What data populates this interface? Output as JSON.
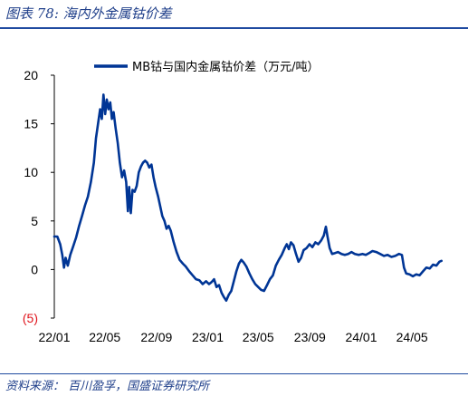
{
  "figure_title": "图表 78:  海内外金属钴价差",
  "source": "资料来源：  百川盈孚，国盛证券研究所",
  "chart_data": {
    "type": "line",
    "title": "",
    "xlabel": "",
    "ylabel": "",
    "legend_position": "top",
    "grid": false,
    "ylim": [
      -5,
      20
    ],
    "yticks": [
      {
        "value": 20,
        "label": "20"
      },
      {
        "value": 15,
        "label": "15"
      },
      {
        "value": 10,
        "label": "10"
      },
      {
        "value": 5,
        "label": "5"
      },
      {
        "value": 0,
        "label": "0"
      },
      {
        "value": -5,
        "label": "(5)"
      }
    ],
    "xlim": [
      "2022-01-01",
      "2024-07-15"
    ],
    "xticks": [
      {
        "date": "2022-01-01",
        "label": "22/01"
      },
      {
        "date": "2022-05-01",
        "label": "22/05"
      },
      {
        "date": "2022-09-01",
        "label": "22/09"
      },
      {
        "date": "2023-01-01",
        "label": "23/01"
      },
      {
        "date": "2023-05-01",
        "label": "23/05"
      },
      {
        "date": "2023-09-01",
        "label": "23/09"
      },
      {
        "date": "2024-01-01",
        "label": "24/01"
      },
      {
        "date": "2024-05-01",
        "label": "24/05"
      }
    ],
    "series": [
      {
        "name": "MB钴与国内金属钴价差（万元/吨）",
        "color": "#003595",
        "points": [
          [
            "2022-01-01",
            3.4
          ],
          [
            "2022-01-08",
            3.4
          ],
          [
            "2022-01-15",
            2.6
          ],
          [
            "2022-01-20",
            1.5
          ],
          [
            "2022-01-24",
            0.2
          ],
          [
            "2022-01-28",
            1.2
          ],
          [
            "2022-02-02",
            0.4
          ],
          [
            "2022-02-08",
            1.5
          ],
          [
            "2022-02-15",
            2.4
          ],
          [
            "2022-02-22",
            3.3
          ],
          [
            "2022-03-01",
            4.5
          ],
          [
            "2022-03-08",
            5.5
          ],
          [
            "2022-03-15",
            6.6
          ],
          [
            "2022-03-22",
            7.5
          ],
          [
            "2022-03-29",
            9.0
          ],
          [
            "2022-04-05",
            11.0
          ],
          [
            "2022-04-10",
            13.5
          ],
          [
            "2022-04-15",
            15.0
          ],
          [
            "2022-04-20",
            16.5
          ],
          [
            "2022-04-24",
            15.5
          ],
          [
            "2022-04-28",
            18.0
          ],
          [
            "2022-05-02",
            16.0
          ],
          [
            "2022-05-06",
            17.5
          ],
          [
            "2022-05-10",
            16.5
          ],
          [
            "2022-05-14",
            17.2
          ],
          [
            "2022-05-18",
            15.5
          ],
          [
            "2022-05-22",
            16.2
          ],
          [
            "2022-05-27",
            14.5
          ],
          [
            "2022-06-01",
            13.0
          ],
          [
            "2022-06-06",
            11.0
          ],
          [
            "2022-06-11",
            9.5
          ],
          [
            "2022-06-16",
            10.2
          ],
          [
            "2022-06-21",
            9.0
          ],
          [
            "2022-06-25",
            6.0
          ],
          [
            "2022-06-28",
            8.5
          ],
          [
            "2022-07-02",
            5.8
          ],
          [
            "2022-07-06",
            8.2
          ],
          [
            "2022-07-11",
            8.0
          ],
          [
            "2022-07-16",
            8.6
          ],
          [
            "2022-07-21",
            10.0
          ],
          [
            "2022-07-26",
            10.6
          ],
          [
            "2022-07-31",
            11.0
          ],
          [
            "2022-08-05",
            11.2
          ],
          [
            "2022-08-10",
            11.0
          ],
          [
            "2022-08-15",
            10.5
          ],
          [
            "2022-08-20",
            10.8
          ],
          [
            "2022-08-25",
            9.5
          ],
          [
            "2022-08-30",
            8.5
          ],
          [
            "2022-09-05",
            7.5
          ],
          [
            "2022-09-10",
            6.5
          ],
          [
            "2022-09-15",
            5.5
          ],
          [
            "2022-09-20",
            5.0
          ],
          [
            "2022-09-25",
            4.2
          ],
          [
            "2022-09-30",
            4.5
          ],
          [
            "2022-10-05",
            4.0
          ],
          [
            "2022-10-12",
            2.8
          ],
          [
            "2022-10-19",
            1.8
          ],
          [
            "2022-10-26",
            1.0
          ],
          [
            "2022-11-03",
            0.6
          ],
          [
            "2022-11-10",
            0.3
          ],
          [
            "2022-11-18",
            -0.2
          ],
          [
            "2022-11-26",
            -0.6
          ],
          [
            "2022-12-04",
            -1.0
          ],
          [
            "2022-12-12",
            -1.1
          ],
          [
            "2022-12-20",
            -1.5
          ],
          [
            "2022-12-28",
            -1.2
          ],
          [
            "2023-01-04",
            -1.5
          ],
          [
            "2023-01-10",
            -1.3
          ],
          [
            "2023-01-16",
            -1.0
          ],
          [
            "2023-01-22",
            -1.8
          ],
          [
            "2023-01-28",
            -1.6
          ],
          [
            "2023-02-03",
            -2.4
          ],
          [
            "2023-02-08",
            -2.8
          ],
          [
            "2023-02-14",
            -3.2
          ],
          [
            "2023-02-20",
            -2.6
          ],
          [
            "2023-02-26",
            -2.2
          ],
          [
            "2023-03-04",
            -1.2
          ],
          [
            "2023-03-10",
            -0.2
          ],
          [
            "2023-03-16",
            0.6
          ],
          [
            "2023-03-22",
            1.0
          ],
          [
            "2023-03-28",
            0.7
          ],
          [
            "2023-04-03",
            0.3
          ],
          [
            "2023-04-10",
            -0.4
          ],
          [
            "2023-04-17",
            -1.0
          ],
          [
            "2023-04-24",
            -1.5
          ],
          [
            "2023-05-01",
            -1.8
          ],
          [
            "2023-05-08",
            -2.1
          ],
          [
            "2023-05-15",
            -2.2
          ],
          [
            "2023-05-22",
            -1.6
          ],
          [
            "2023-05-29",
            -1.0
          ],
          [
            "2023-06-05",
            -0.6
          ],
          [
            "2023-06-12",
            0.4
          ],
          [
            "2023-06-19",
            1.0
          ],
          [
            "2023-06-26",
            1.5
          ],
          [
            "2023-07-03",
            2.2
          ],
          [
            "2023-07-08",
            2.6
          ],
          [
            "2023-07-13",
            2.1
          ],
          [
            "2023-07-18",
            2.8
          ],
          [
            "2023-07-24",
            2.5
          ],
          [
            "2023-07-30",
            1.6
          ],
          [
            "2023-08-05",
            0.8
          ],
          [
            "2023-08-11",
            1.2
          ],
          [
            "2023-08-17",
            2.0
          ],
          [
            "2023-08-24",
            2.2
          ],
          [
            "2023-08-31",
            2.6
          ],
          [
            "2023-09-07",
            2.3
          ],
          [
            "2023-09-14",
            2.8
          ],
          [
            "2023-09-21",
            2.6
          ],
          [
            "2023-09-28",
            3.0
          ],
          [
            "2023-10-04",
            3.5
          ],
          [
            "2023-10-09",
            4.4
          ],
          [
            "2023-10-13",
            3.4
          ],
          [
            "2023-10-18",
            2.2
          ],
          [
            "2023-10-24",
            1.6
          ],
          [
            "2023-10-31",
            1.7
          ],
          [
            "2023-11-07",
            1.8
          ],
          [
            "2023-11-15",
            1.6
          ],
          [
            "2023-11-23",
            1.5
          ],
          [
            "2023-12-01",
            1.6
          ],
          [
            "2023-12-09",
            1.8
          ],
          [
            "2023-12-17",
            1.6
          ],
          [
            "2023-12-26",
            1.5
          ],
          [
            "2024-01-04",
            1.6
          ],
          [
            "2024-01-12",
            1.5
          ],
          [
            "2024-01-20",
            1.7
          ],
          [
            "2024-01-28",
            1.9
          ],
          [
            "2024-02-06",
            1.8
          ],
          [
            "2024-02-15",
            1.6
          ],
          [
            "2024-02-24",
            1.4
          ],
          [
            "2024-03-04",
            1.5
          ],
          [
            "2024-03-13",
            1.3
          ],
          [
            "2024-03-22",
            1.4
          ],
          [
            "2024-03-31",
            1.6
          ],
          [
            "2024-04-07",
            1.5
          ],
          [
            "2024-04-12",
            0.2
          ],
          [
            "2024-04-17",
            -0.4
          ],
          [
            "2024-04-25",
            -0.5
          ],
          [
            "2024-05-03",
            -0.7
          ],
          [
            "2024-05-11",
            -0.5
          ],
          [
            "2024-05-19",
            -0.6
          ],
          [
            "2024-05-27",
            -0.2
          ],
          [
            "2024-06-04",
            0.2
          ],
          [
            "2024-06-12",
            0.1
          ],
          [
            "2024-06-20",
            0.5
          ],
          [
            "2024-06-28",
            0.4
          ],
          [
            "2024-07-05",
            0.8
          ],
          [
            "2024-07-10",
            0.9
          ]
        ]
      }
    ]
  }
}
